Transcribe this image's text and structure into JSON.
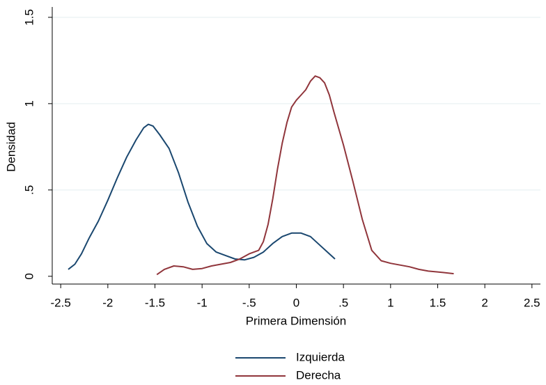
{
  "chart_data": {
    "type": "line",
    "x_label": "Primera Dimensión",
    "y_label": "Densidad",
    "xlim": [
      -2.59,
      2.59
    ],
    "ylim": [
      -0.045,
      1.56
    ],
    "xticks": [
      {
        "value": -2.5,
        "label": "-2.5"
      },
      -2,
      -1.5,
      -1,
      {
        "value": -0.5,
        "label": "-.5"
      },
      0,
      {
        "value": 0.5,
        "label": ".5"
      },
      1,
      1.5,
      2,
      2.5
    ],
    "yticks": [
      0,
      {
        "value": 0.5,
        "label": ".5"
      },
      1,
      1.5
    ],
    "grid": true,
    "legend": "bottom",
    "series": [
      {
        "name": "Izquierda",
        "color": "#1a476f",
        "x": [
          -2.42,
          -2.35,
          -2.28,
          -2.2,
          -2.1,
          -2.0,
          -1.9,
          -1.8,
          -1.7,
          -1.62,
          -1.57,
          -1.52,
          -1.45,
          -1.35,
          -1.25,
          -1.15,
          -1.05,
          -0.95,
          -0.85,
          -0.75,
          -0.65,
          -0.55,
          -0.45,
          -0.35,
          -0.25,
          -0.15,
          -0.05,
          0.05,
          0.15,
          0.25,
          0.33,
          0.41
        ],
        "values": [
          0.04,
          0.07,
          0.13,
          0.22,
          0.32,
          0.44,
          0.57,
          0.69,
          0.79,
          0.86,
          0.88,
          0.87,
          0.82,
          0.74,
          0.6,
          0.43,
          0.29,
          0.19,
          0.14,
          0.12,
          0.1,
          0.095,
          0.11,
          0.14,
          0.19,
          0.23,
          0.25,
          0.25,
          0.23,
          0.18,
          0.14,
          0.1
        ]
      },
      {
        "name": "Derecha",
        "color": "#90353b",
        "x": [
          -1.48,
          -1.4,
          -1.3,
          -1.2,
          -1.1,
          -1.0,
          -0.9,
          -0.8,
          -0.7,
          -0.6,
          -0.5,
          -0.4,
          -0.35,
          -0.3,
          -0.25,
          -0.2,
          -0.15,
          -0.1,
          -0.05,
          0.0,
          0.05,
          0.1,
          0.15,
          0.2,
          0.25,
          0.3,
          0.35,
          0.4,
          0.5,
          0.6,
          0.7,
          0.8,
          0.9,
          1.0,
          1.1,
          1.2,
          1.3,
          1.4,
          1.5,
          1.67
        ],
        "values": [
          0.01,
          0.04,
          0.06,
          0.055,
          0.04,
          0.045,
          0.06,
          0.07,
          0.08,
          0.1,
          0.13,
          0.15,
          0.2,
          0.3,
          0.45,
          0.62,
          0.77,
          0.89,
          0.98,
          1.02,
          1.05,
          1.08,
          1.13,
          1.16,
          1.15,
          1.12,
          1.05,
          0.95,
          0.76,
          0.55,
          0.33,
          0.15,
          0.09,
          0.075,
          0.065,
          0.055,
          0.04,
          0.03,
          0.025,
          0.015
        ]
      }
    ]
  }
}
